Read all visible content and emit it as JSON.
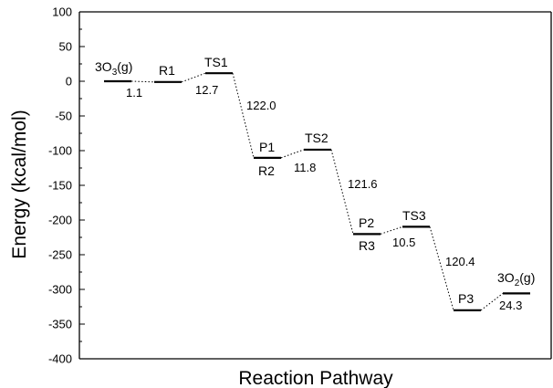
{
  "chart_data": {
    "type": "line",
    "xlabel": "Reaction Pathway",
    "ylabel": "Energy (kcal/mol)",
    "ylim": [
      -400,
      100
    ],
    "yticks": [
      100,
      50,
      0,
      -50,
      -100,
      -150,
      -200,
      -250,
      -300,
      -350,
      -400
    ],
    "ytick_labels": [
      "100",
      "50",
      "0",
      "-50",
      "-100",
      "-150",
      "-200",
      "-250",
      "-300",
      "-350",
      "-400"
    ],
    "grid": false,
    "legend": "none",
    "states": [
      {
        "x": 1,
        "y": 0,
        "label": "3O3(g)"
      },
      {
        "x": 2,
        "y": -1.1,
        "label": "R1"
      },
      {
        "x": 3,
        "y": 11.6,
        "label": "TS1"
      },
      {
        "x": 4,
        "y": -110.4,
        "label": "P1 / R2"
      },
      {
        "x": 5,
        "y": -98.6,
        "label": "TS2"
      },
      {
        "x": 6,
        "y": -220.2,
        "label": "P2 / R3"
      },
      {
        "x": 7,
        "y": -209.7,
        "label": "TS3"
      },
      {
        "x": 8,
        "y": -330.1,
        "label": "P3"
      },
      {
        "x": 9,
        "y": -305.8,
        "label": "3O2(g)"
      }
    ],
    "state_labels": {
      "o3": {
        "base": "3O",
        "sub": "3",
        "rest": "(g)"
      },
      "r1": "R1",
      "ts1": "TS1",
      "p1": "P1",
      "r2": "R2",
      "ts2": "TS2",
      "p2": "P2",
      "r3": "R3",
      "ts3": "TS3",
      "p3": "P3",
      "o2": {
        "base": "3O",
        "sub": "2",
        "rest": "(g)"
      }
    },
    "energy_gaps": [
      "1.1",
      "12.7",
      "122.0",
      "11.8",
      "121.6",
      "10.5",
      "120.4",
      "24.3"
    ]
  }
}
